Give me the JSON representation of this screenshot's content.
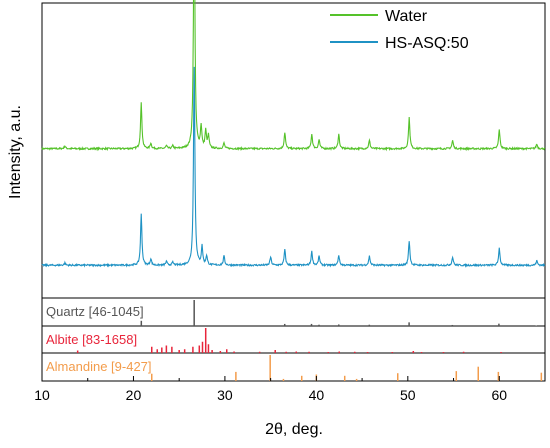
{
  "chart_data": {
    "type": "line",
    "xlabel": "2θ, deg.",
    "ylabel": "Intensity, a.u.",
    "xlim": [
      10,
      65
    ],
    "x_ticks": [
      "10",
      "20",
      "30",
      "40",
      "50",
      "60"
    ],
    "legend_position": "top-right",
    "series": [
      {
        "name": "Water",
        "color": "#55c22a",
        "baseline": 0.82,
        "noise": 0.03,
        "peaks": [
          [
            12.5,
            0.15
          ],
          [
            20.85,
            2.5
          ],
          [
            21.9,
            0.3
          ],
          [
            23.6,
            0.15
          ],
          [
            24.3,
            0.15
          ],
          [
            26.64,
            13.8
          ],
          [
            27.4,
            1.2
          ],
          [
            27.9,
            0.95
          ],
          [
            28.2,
            0.7
          ],
          [
            29.9,
            0.3
          ],
          [
            36.55,
            0.9
          ],
          [
            39.5,
            0.8
          ],
          [
            40.3,
            0.5
          ],
          [
            42.45,
            0.8
          ],
          [
            45.8,
            0.45
          ],
          [
            50.15,
            1.7
          ],
          [
            54.9,
            0.45
          ],
          [
            60.0,
            1.05
          ],
          [
            64.1,
            0.25
          ]
        ]
      },
      {
        "name": "HS-ASQ:50",
        "color": "#1f92c4",
        "baseline": 0.18,
        "noise": 0.03,
        "peaks": [
          [
            12.5,
            0.12
          ],
          [
            20.85,
            2.8
          ],
          [
            21.9,
            0.35
          ],
          [
            23.6,
            0.2
          ],
          [
            24.3,
            0.15
          ],
          [
            26.64,
            11.0
          ],
          [
            27.5,
            1.0
          ],
          [
            28.0,
            0.5
          ],
          [
            29.9,
            0.5
          ],
          [
            35.0,
            0.45
          ],
          [
            36.55,
            0.85
          ],
          [
            39.5,
            0.75
          ],
          [
            40.3,
            0.5
          ],
          [
            42.45,
            0.55
          ],
          [
            45.8,
            0.5
          ],
          [
            50.15,
            1.35
          ],
          [
            54.9,
            0.45
          ],
          [
            60.0,
            0.95
          ],
          [
            64.1,
            0.25
          ]
        ]
      }
    ],
    "reference_panels": [
      {
        "label": "Quartz [46-1045]",
        "color": "#555555",
        "lines": [
          [
            20.86,
            0.2
          ],
          [
            26.64,
            1.0
          ],
          [
            36.54,
            0.08
          ],
          [
            39.47,
            0.08
          ],
          [
            40.29,
            0.05
          ],
          [
            42.45,
            0.06
          ],
          [
            45.79,
            0.05
          ],
          [
            50.14,
            0.14
          ],
          [
            54.87,
            0.04
          ],
          [
            59.96,
            0.09
          ],
          [
            64.04,
            0.02
          ]
        ]
      },
      {
        "label": "Albite [83-1658]",
        "color": "#e8253b",
        "lines": [
          [
            13.9,
            0.1
          ],
          [
            22.0,
            0.25
          ],
          [
            22.6,
            0.15
          ],
          [
            23.1,
            0.22
          ],
          [
            23.6,
            0.3
          ],
          [
            24.2,
            0.25
          ],
          [
            25.0,
            0.12
          ],
          [
            25.6,
            0.15
          ],
          [
            26.5,
            0.25
          ],
          [
            27.2,
            0.3
          ],
          [
            27.55,
            0.45
          ],
          [
            27.9,
            1.0
          ],
          [
            28.2,
            0.35
          ],
          [
            28.6,
            0.12
          ],
          [
            29.5,
            0.08
          ],
          [
            30.2,
            0.15
          ],
          [
            31.0,
            0.06
          ],
          [
            33.8,
            0.05
          ],
          [
            35.5,
            0.12
          ],
          [
            36.7,
            0.05
          ],
          [
            37.8,
            0.06
          ],
          [
            39.2,
            0.05
          ],
          [
            41.3,
            0.04
          ],
          [
            42.5,
            0.06
          ],
          [
            44.2,
            0.05
          ],
          [
            45.6,
            0.04
          ],
          [
            48.3,
            0.04
          ],
          [
            50.6,
            0.08
          ],
          [
            51.5,
            0.04
          ],
          [
            53.9,
            0.04
          ],
          [
            56.1,
            0.05
          ],
          [
            60.2,
            0.04
          ]
        ]
      },
      {
        "label": "Almandine [9-427]",
        "color": "#f39c4b",
        "lines": [
          [
            22.0,
            0.28
          ],
          [
            31.2,
            0.35
          ],
          [
            34.95,
            1.0
          ],
          [
            36.4,
            0.08
          ],
          [
            38.4,
            0.2
          ],
          [
            40.0,
            0.25
          ],
          [
            43.1,
            0.2
          ],
          [
            44.4,
            0.08
          ],
          [
            48.9,
            0.3
          ],
          [
            55.3,
            0.38
          ],
          [
            57.7,
            0.55
          ],
          [
            59.9,
            0.35
          ],
          [
            64.6,
            0.32
          ]
        ]
      }
    ]
  }
}
